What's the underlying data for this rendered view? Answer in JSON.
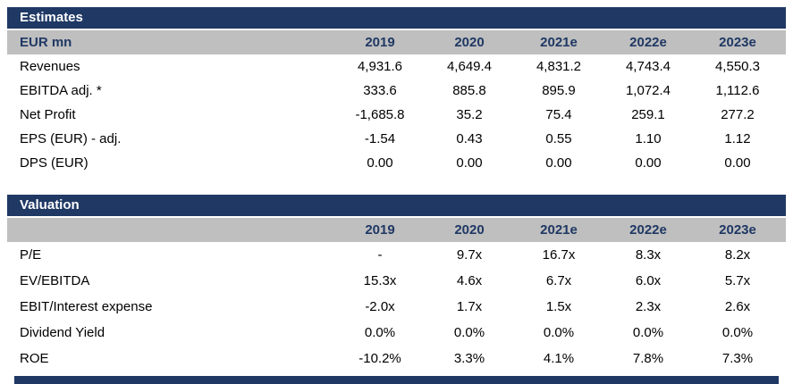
{
  "colors": {
    "header_navy": "#1F3864",
    "band_gray": "#BFBFBF",
    "text_black": "#000000",
    "header_text_white": "#FFFFFF"
  },
  "tables": [
    {
      "title": "Estimates",
      "unit_label": "EUR mn",
      "columns": [
        "2019",
        "2020",
        "2021e",
        "2022e",
        "2023e"
      ],
      "rows": [
        {
          "label": "Revenues",
          "values": [
            "4,931.6",
            "4,649.4",
            "4,831.2",
            "4,743.4",
            "4,550.3"
          ]
        },
        {
          "label": "EBITDA adj. *",
          "values": [
            "333.6",
            "885.8",
            "895.9",
            "1,072.4",
            "1,112.6"
          ]
        },
        {
          "label": "Net Profit",
          "values": [
            "-1,685.8",
            "35.2",
            "75.4",
            "259.1",
            "277.2"
          ]
        },
        {
          "label": "EPS (EUR) - adj.",
          "values": [
            "-1.54",
            "0.43",
            "0.55",
            "1.10",
            "1.12"
          ]
        },
        {
          "label": "DPS (EUR)",
          "values": [
            "0.00",
            "0.00",
            "0.00",
            "0.00",
            "0.00"
          ]
        }
      ]
    },
    {
      "title": "Valuation",
      "unit_label": "",
      "columns": [
        "2019",
        "2020",
        "2021e",
        "2022e",
        "2023e"
      ],
      "rows": [
        {
          "label": "P/E",
          "values": [
            "-",
            "9.7x",
            "16.7x",
            "8.3x",
            "8.2x"
          ]
        },
        {
          "label": "EV/EBITDA",
          "values": [
            "15.3x",
            "4.6x",
            "6.7x",
            "6.0x",
            "5.7x"
          ]
        },
        {
          "label": "EBIT/Interest expense",
          "values": [
            "-2.0x",
            "1.7x",
            "1.5x",
            "2.3x",
            "2.6x"
          ]
        },
        {
          "label": "Dividend Yield",
          "values": [
            "0.0%",
            "0.0%",
            "0.0%",
            "0.0%",
            "0.0%"
          ]
        },
        {
          "label": "ROE",
          "values": [
            "-10.2%",
            "3.3%",
            "4.1%",
            "7.8%",
            "7.3%"
          ]
        }
      ]
    }
  ]
}
